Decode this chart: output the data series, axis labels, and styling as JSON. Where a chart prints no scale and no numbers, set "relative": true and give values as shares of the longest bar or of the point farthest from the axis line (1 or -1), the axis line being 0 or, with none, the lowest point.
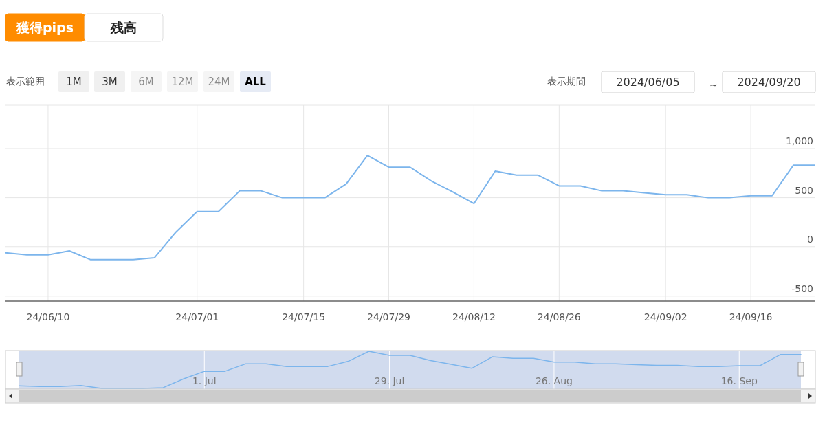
{
  "chart_data": [
    {
      "type": "line",
      "categories": [
        null,
        null,
        "24/06/10",
        null,
        null,
        null,
        null,
        null,
        null,
        "24/07/01",
        null,
        null,
        null,
        null,
        "24/07/15",
        null,
        null,
        null,
        "24/07/29",
        null,
        null,
        null,
        "24/08/12",
        null,
        null,
        null,
        "24/08/26",
        null,
        null,
        null,
        null,
        "24/09/02",
        null,
        null,
        null,
        "24/09/16",
        null,
        null,
        null
      ],
      "series": [
        {
          "color": "#7cb5ec",
          "values": [
            -60,
            -80,
            -80,
            -40,
            -130,
            -130,
            -130,
            -110,
            150,
            360,
            360,
            570,
            570,
            500,
            500,
            500,
            640,
            930,
            810,
            810,
            670,
            560,
            440,
            770,
            730,
            730,
            620,
            620,
            570,
            570,
            550,
            530,
            530,
            500,
            500,
            520,
            520,
            830,
            830
          ]
        }
      ],
      "ylim": [
        -550,
        1440
      ],
      "yticks": [
        -500,
        0,
        500,
        {
          "value": 1000,
          "label": "1,000"
        }
      ],
      "grid": true,
      "annotations": [
        "獲得pips",
        "残高",
        "表示範囲",
        "1M",
        "3M",
        "6M",
        "12M",
        "24M",
        "ALL",
        "表示期間",
        "2024/06/05",
        "~",
        "2024/09/20"
      ]
    },
    {
      "type": "line",
      "relative": true,
      "categories": [
        null,
        null,
        null,
        null,
        null,
        null,
        null,
        null,
        null,
        "1. Jul",
        null,
        null,
        null,
        null,
        null,
        null,
        null,
        null,
        "29. Jul",
        null,
        null,
        null,
        null,
        null,
        null,
        null,
        "26. Aug",
        null,
        null,
        null,
        null,
        null,
        null,
        null,
        null,
        "16. Sep",
        null,
        null,
        null
      ],
      "series": [
        {
          "color": "#7cb5ec",
          "values": [
            0.07,
            0.05,
            0.05,
            0.08,
            0,
            0,
            0,
            0.02,
            0.26,
            0.46,
            0.46,
            0.66,
            0.66,
            0.59,
            0.59,
            0.59,
            0.73,
            1,
            0.89,
            0.89,
            0.75,
            0.65,
            0.54,
            0.85,
            0.81,
            0.81,
            0.71,
            0.71,
            0.66,
            0.66,
            0.64,
            0.62,
            0.62,
            0.59,
            0.59,
            0.61,
            0.61,
            0.91,
            0.91
          ]
        }
      ],
      "grid": "x"
    }
  ]
}
